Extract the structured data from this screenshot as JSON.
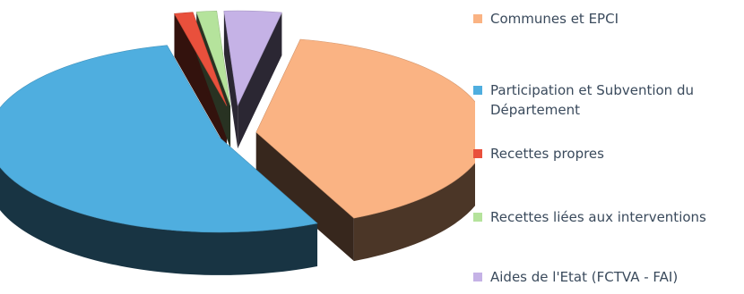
{
  "chart_data": {
    "type": "pie",
    "variant": "3d-exploded",
    "title": "",
    "slices": [
      {
        "label": "Communes et EPCI",
        "value": 40.0,
        "color": "#fab383"
      },
      {
        "label": "Participation et Subvention du Département",
        "value": 53.3,
        "color": "#4faedf"
      },
      {
        "label": "Recettes propres",
        "value": 1.3,
        "color": "#e9503c"
      },
      {
        "label": "Recettes liées aux interventions",
        "value": 1.4,
        "color": "#b5e39c"
      },
      {
        "label": "Aides de l'Etat (FCTVA - FAI)",
        "value": 4.0,
        "color": "#c5b2e6"
      }
    ],
    "legend_position": "right",
    "legend": [
      {
        "lines": [
          "Communes et EPCI"
        ],
        "color": "#fab383"
      },
      {
        "lines": [
          "Participation et Subvention du",
          "Département"
        ],
        "color": "#4faedf"
      },
      {
        "lines": [
          "Recettes propres"
        ],
        "color": "#e9503c"
      },
      {
        "lines": [
          "Recettes liées aux interventions"
        ],
        "color": "#b5e39c"
      },
      {
        "lines": [
          "Aides de l'Etat (FCTVA - FAI)"
        ],
        "color": "#c5b2e6"
      }
    ]
  }
}
